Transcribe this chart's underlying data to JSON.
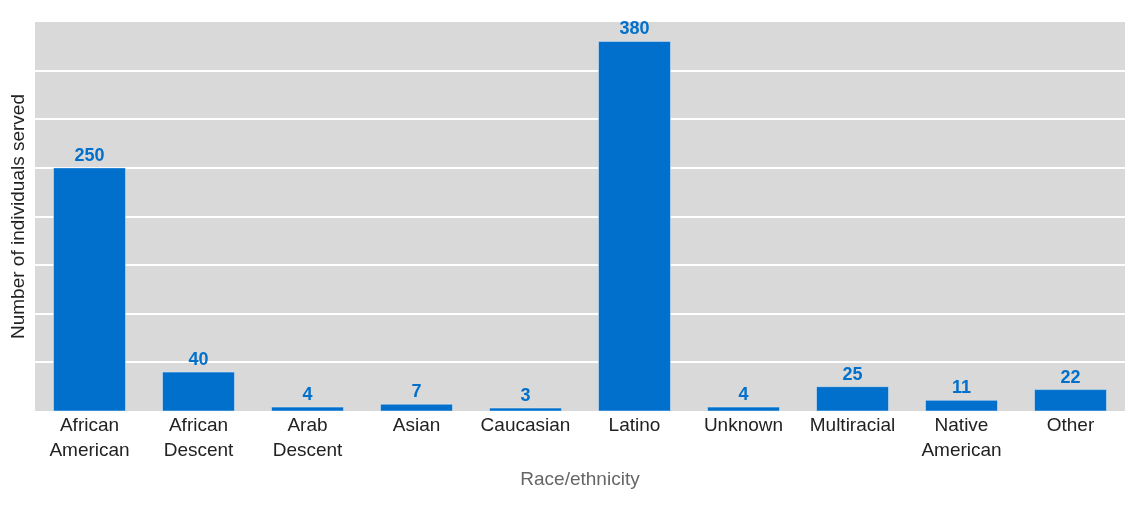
{
  "chart_data": {
    "type": "bar",
    "xlabel": "Race/ethnicity",
    "ylabel": "Number of individuals served",
    "categories": [
      "African American",
      "African Descent",
      "Arab Descent",
      "Asian",
      "Caucasian",
      "Latino",
      "Unknown",
      "Multiracial",
      "Native American",
      "Other"
    ],
    "values": [
      250,
      40,
      4,
      7,
      3,
      380,
      4,
      25,
      11,
      22
    ],
    "color": "#0070cc",
    "ylim": [
      0,
      400
    ],
    "yticks": [
      {
        "value": 0,
        "label": null
      },
      {
        "value": 50,
        "label": null
      },
      {
        "value": 100,
        "label": null
      },
      {
        "value": 150,
        "label": null
      },
      {
        "value": 200,
        "label": null
      },
      {
        "value": 250,
        "label": null
      },
      {
        "value": 300,
        "label": null
      },
      {
        "value": 350,
        "label": null
      },
      {
        "value": 400,
        "label": null
      }
    ],
    "grid": "y",
    "tick_labels": "x",
    "data_labels": true
  }
}
